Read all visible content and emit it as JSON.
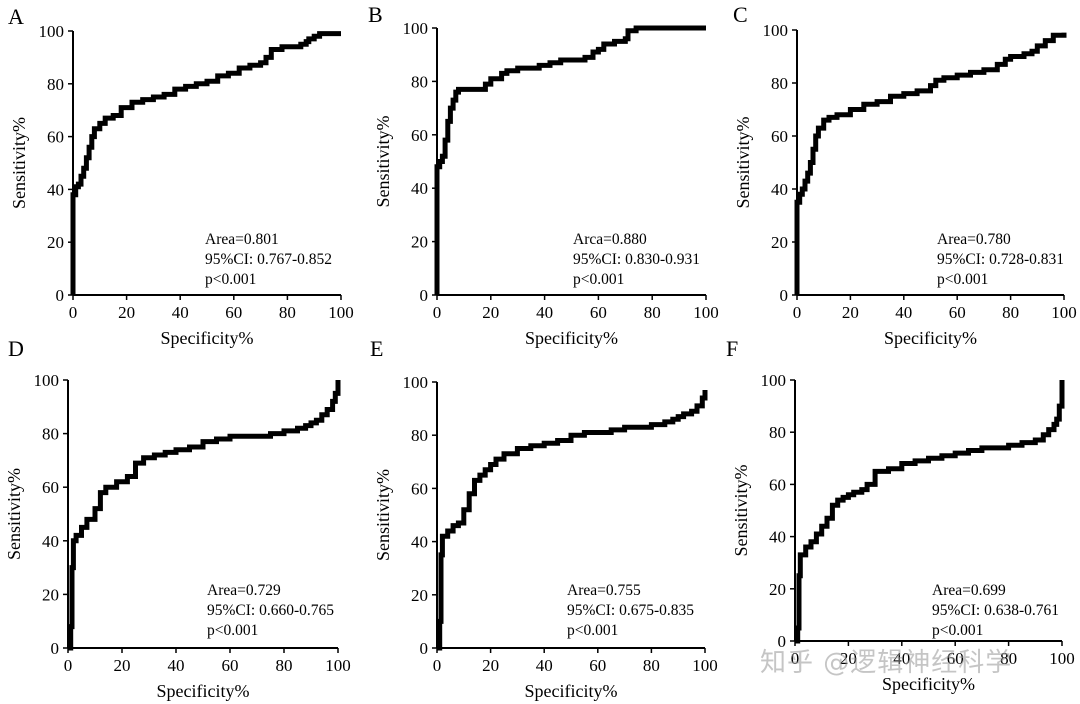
{
  "watermark": "知乎 @逻辑神经科学",
  "chart_data": [
    {
      "type": "line",
      "panel_label": "A",
      "xlabel": "Specificity%",
      "ylabel": "Sensitivity%",
      "xlim": [
        0,
        100
      ],
      "ylim": [
        0,
        100
      ],
      "xticks": [
        0,
        20,
        40,
        60,
        80,
        100
      ],
      "yticks": [
        0,
        20,
        40,
        60,
        80,
        100
      ],
      "annotations": [
        "Area=0.801",
        "95%CI: 0.767-0.852",
        "p<0.001"
      ],
      "series": [
        {
          "x": [
            0,
            0,
            1,
            2,
            3,
            4,
            5,
            6,
            7,
            8,
            10,
            12,
            15,
            18,
            22,
            26,
            30,
            34,
            38,
            42,
            46,
            50,
            54,
            58,
            62,
            66,
            70,
            72,
            74,
            78,
            82,
            85,
            87,
            88,
            90,
            92,
            95,
            98,
            100
          ],
          "y": [
            0,
            38,
            41,
            42,
            45,
            48,
            52,
            56,
            60,
            63,
            65,
            67,
            68,
            71,
            73,
            74,
            75,
            76,
            78,
            79,
            80,
            81,
            83,
            84,
            86,
            87,
            88,
            90,
            93,
            94,
            94,
            95,
            96,
            97,
            98,
            99,
            99,
            99,
            99
          ]
        }
      ]
    },
    {
      "type": "line",
      "panel_label": "B",
      "xlabel": "Specificity%",
      "ylabel": "Sensitivity%",
      "xlim": [
        0,
        100
      ],
      "ylim": [
        0,
        100
      ],
      "xticks": [
        0,
        20,
        40,
        60,
        80,
        100
      ],
      "yticks": [
        0,
        20,
        40,
        60,
        80,
        100
      ],
      "annotations": [
        "Arca=0.880",
        "95%CI: 0.830-0.931",
        "p<0.001"
      ],
      "series": [
        {
          "x": [
            0,
            0,
            1,
            2,
            3,
            4,
            5,
            6,
            7,
            8,
            10,
            14,
            18,
            20,
            24,
            26,
            30,
            34,
            38,
            42,
            46,
            52,
            55,
            58,
            60,
            62,
            66,
            70,
            71,
            74,
            80,
            90,
            100
          ],
          "y": [
            0,
            48,
            50,
            52,
            58,
            65,
            70,
            73,
            76,
            77,
            77,
            77,
            79,
            81,
            83,
            84,
            85,
            85,
            86,
            87,
            88,
            88,
            89,
            91,
            92,
            94,
            95,
            96,
            99,
            100,
            100,
            100,
            100
          ]
        }
      ]
    },
    {
      "type": "line",
      "panel_label": "C",
      "xlabel": "Specificity%",
      "ylabel": "Sensitivity%",
      "xlim": [
        0,
        100
      ],
      "ylim": [
        0,
        100
      ],
      "xticks": [
        0,
        20,
        40,
        60,
        80,
        100
      ],
      "yticks": [
        0,
        20,
        40,
        60,
        80,
        100
      ],
      "annotations": [
        "Area=0.780",
        "95%CI: 0.728-0.831",
        "p<0.001"
      ],
      "series": [
        {
          "x": [
            0,
            0,
            1,
            2,
            3,
            4,
            5,
            6,
            7,
            8,
            10,
            12,
            15,
            20,
            25,
            30,
            35,
            40,
            45,
            50,
            52,
            55,
            60,
            65,
            70,
            75,
            78,
            80,
            85,
            88,
            90,
            93,
            96,
            100
          ],
          "y": [
            0,
            35,
            38,
            40,
            43,
            46,
            50,
            55,
            60,
            63,
            66,
            67,
            68,
            70,
            72,
            73,
            75,
            76,
            77,
            79,
            81,
            82,
            83,
            84,
            85,
            87,
            89,
            90,
            91,
            92,
            94,
            96,
            98,
            99
          ]
        }
      ]
    },
    {
      "type": "line",
      "panel_label": "D",
      "xlabel": "Specificity%",
      "ylabel": "Sensitivity%",
      "xlim": [
        0,
        100
      ],
      "ylim": [
        0,
        100
      ],
      "xticks": [
        0,
        20,
        40,
        60,
        80,
        100
      ],
      "yticks": [
        0,
        20,
        40,
        60,
        80,
        100
      ],
      "annotations": [
        "Area=0.729",
        "95%CI: 0.660-0.765",
        "p<0.001"
      ],
      "series": [
        {
          "x": [
            0,
            1,
            1.5,
            2,
            3,
            5,
            7,
            10,
            12,
            14,
            18,
            22,
            25,
            28,
            32,
            36,
            40,
            45,
            50,
            55,
            60,
            65,
            70,
            75,
            80,
            85,
            88,
            90,
            92,
            94,
            96,
            98,
            99,
            100
          ],
          "y": [
            0,
            8,
            30,
            40,
            42,
            45,
            48,
            52,
            58,
            60,
            62,
            64,
            69,
            71,
            72,
            73,
            74,
            75,
            77,
            78,
            79,
            79,
            79,
            80,
            81,
            82,
            83,
            84,
            85,
            87,
            89,
            92,
            95,
            100
          ]
        }
      ]
    },
    {
      "type": "line",
      "panel_label": "E",
      "xlabel": "Specificity%",
      "ylabel": "Sensitivity%",
      "xlim": [
        0,
        100
      ],
      "ylim": [
        0,
        100
      ],
      "xticks": [
        0,
        20,
        40,
        60,
        80,
        100
      ],
      "yticks": [
        0,
        20,
        40,
        60,
        80,
        100
      ],
      "annotations": [
        "Area=0.755",
        "95%CI: 0.675-0.835",
        "p<0.001"
      ],
      "series": [
        {
          "x": [
            0,
            1,
            1.5,
            2,
            4,
            6,
            8,
            10,
            12,
            14,
            16,
            18,
            20,
            22,
            25,
            30,
            35,
            40,
            45,
            50,
            55,
            60,
            65,
            70,
            75,
            80,
            85,
            88,
            90,
            92,
            95,
            97,
            99,
            100
          ],
          "y": [
            0,
            10,
            35,
            42,
            44,
            46,
            47,
            52,
            58,
            63,
            65,
            67,
            69,
            71,
            73,
            75,
            76,
            77,
            78,
            80,
            81,
            81,
            82,
            83,
            83,
            84,
            85,
            86,
            87,
            88,
            89,
            91,
            94,
            97
          ]
        }
      ]
    },
    {
      "type": "line",
      "panel_label": "F",
      "xlabel": "Specificity%",
      "ylabel": "Sensitivity%",
      "xlim": [
        0,
        100
      ],
      "ylim": [
        0,
        100
      ],
      "xticks": [
        0,
        20,
        40,
        60,
        80,
        100
      ],
      "yticks": [
        0,
        20,
        40,
        60,
        80,
        100
      ],
      "annotations": [
        "Area=0.699",
        "95%CI: 0.638-0.761",
        "p<0.001"
      ],
      "series": [
        {
          "x": [
            0,
            1,
            1.5,
            2,
            4,
            6,
            8,
            10,
            12,
            14,
            16,
            18,
            20,
            22,
            25,
            27,
            30,
            35,
            40,
            45,
            50,
            55,
            60,
            65,
            70,
            75,
            80,
            85,
            90,
            93,
            95,
            97,
            98,
            99,
            100
          ],
          "y": [
            0,
            5,
            25,
            33,
            36,
            38,
            41,
            44,
            47,
            52,
            54,
            55,
            56,
            57,
            58,
            60,
            65,
            66,
            68,
            69,
            70,
            71,
            72,
            73,
            74,
            74,
            75,
            76,
            77,
            79,
            81,
            83,
            85,
            90,
            100
          ]
        }
      ]
    }
  ]
}
